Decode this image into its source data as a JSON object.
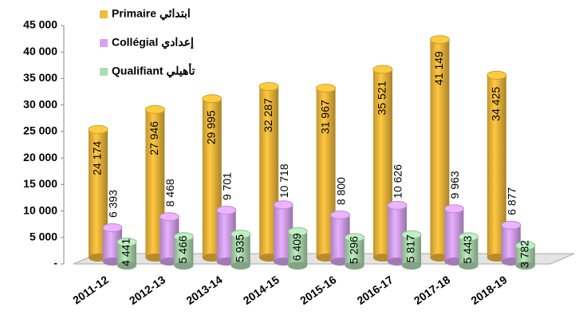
{
  "chart_data": {
    "type": "bar",
    "categories": [
      "2011-12",
      "2012-13",
      "2013-14",
      "2014-15",
      "2015-16",
      "2016-17",
      "2017-18",
      "2018-19"
    ],
    "series": [
      {
        "name": "Primaire ابتدائي",
        "color": "#f2b93b",
        "values": [
          24174,
          27946,
          29995,
          32287,
          31967,
          35521,
          41149,
          34425
        ],
        "value_labels": [
          "24 174",
          "27 946",
          "29 995",
          "32 287",
          "31 967",
          "35 521",
          "41 149",
          "34 425"
        ]
      },
      {
        "name": "Collégial إعدادي",
        "color": "#d7a3f2",
        "values": [
          6393,
          8468,
          9701,
          10718,
          8800,
          10626,
          9963,
          6877
        ],
        "value_labels": [
          "6 393",
          "8 468",
          "9 701",
          "10 718",
          "8 800",
          "10 626",
          "9 963",
          "6 877"
        ]
      },
      {
        "name": "Qualifiant تأهيلي",
        "color": "#aedbb0",
        "values": [
          4441,
          5466,
          5935,
          6409,
          5296,
          5817,
          5443,
          3782
        ],
        "value_labels": [
          "4 441",
          "5 466",
          "5 935",
          "6 409",
          "5 296",
          "5 817",
          "5 443",
          "3 782"
        ]
      }
    ],
    "ylim": [
      0,
      45000
    ],
    "yticks": [
      {
        "value": 0,
        "label": "-"
      },
      {
        "value": 5000,
        "label": "5 000"
      },
      {
        "value": 10000,
        "label": "10 000"
      },
      {
        "value": 15000,
        "label": "15 000"
      },
      {
        "value": 20000,
        "label": "20 000"
      },
      {
        "value": 25000,
        "label": "25 000"
      },
      {
        "value": 30000,
        "label": "30 000"
      },
      {
        "value": 35000,
        "label": "35 000"
      },
      {
        "value": 40000,
        "label": "40 000"
      },
      {
        "value": 45000,
        "label": "45 000"
      }
    ],
    "legend": "top-left"
  }
}
